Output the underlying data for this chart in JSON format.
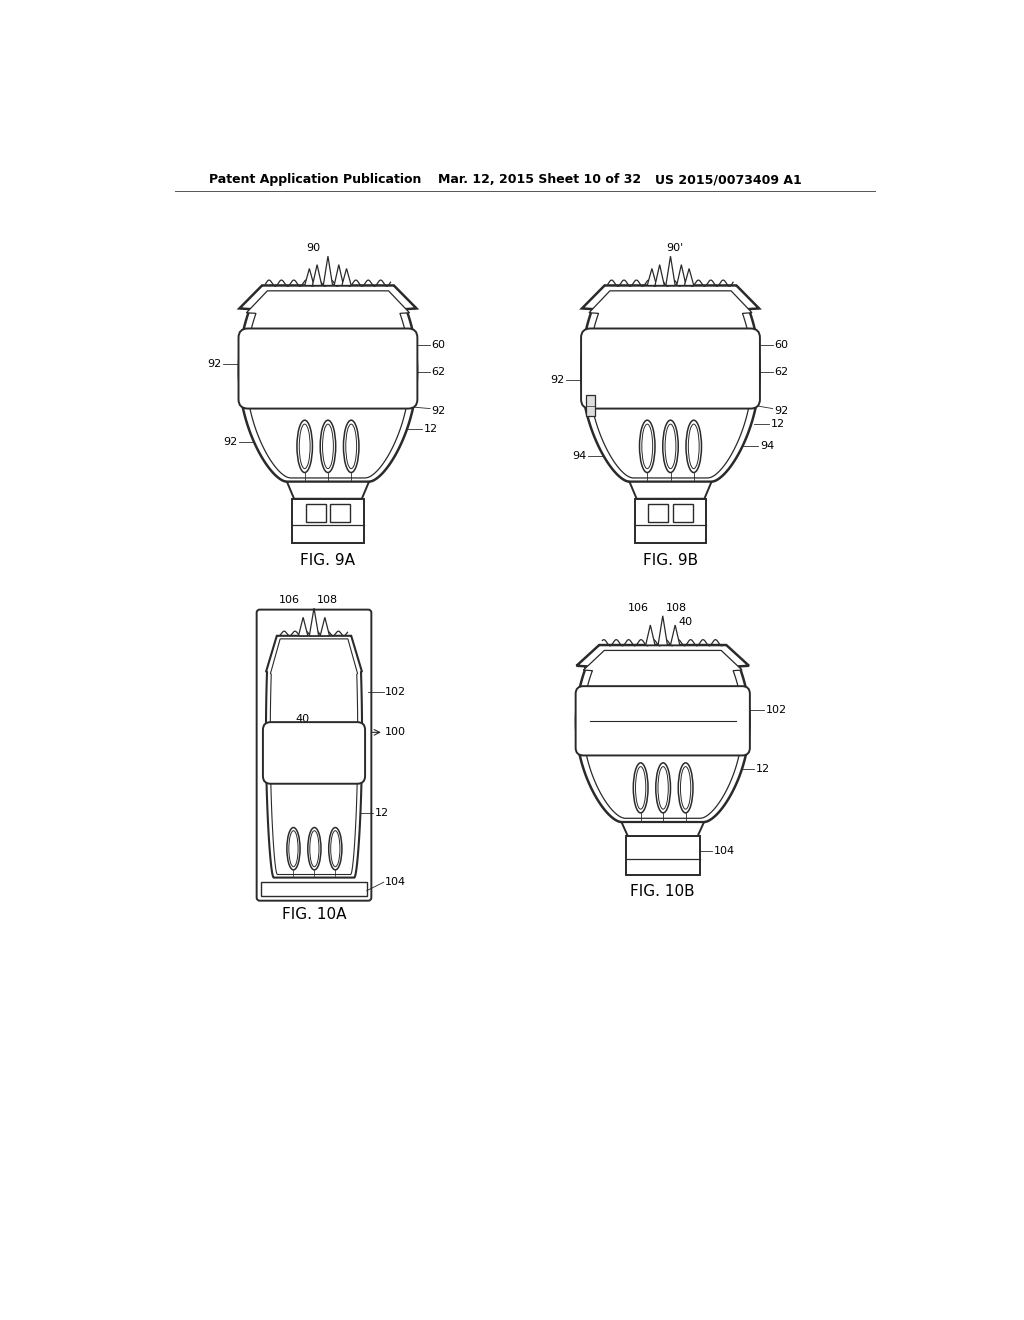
{
  "background_color": "#ffffff",
  "line_color": "#2a2a2a",
  "text_color": "#000000",
  "header_left": "Patent Application Publication",
  "header_mid": "Mar. 12, 2015 Sheet 10 of 32",
  "header_right": "US 2015/0073409 A1",
  "fig9a_label": "FIG. 9A",
  "fig9b_label": "FIG. 9B",
  "fig10a_label": "FIG. 10A",
  "fig10b_label": "FIG. 10B",
  "font_size_header": 9,
  "font_size_labels": 11,
  "font_size_ref": 8
}
